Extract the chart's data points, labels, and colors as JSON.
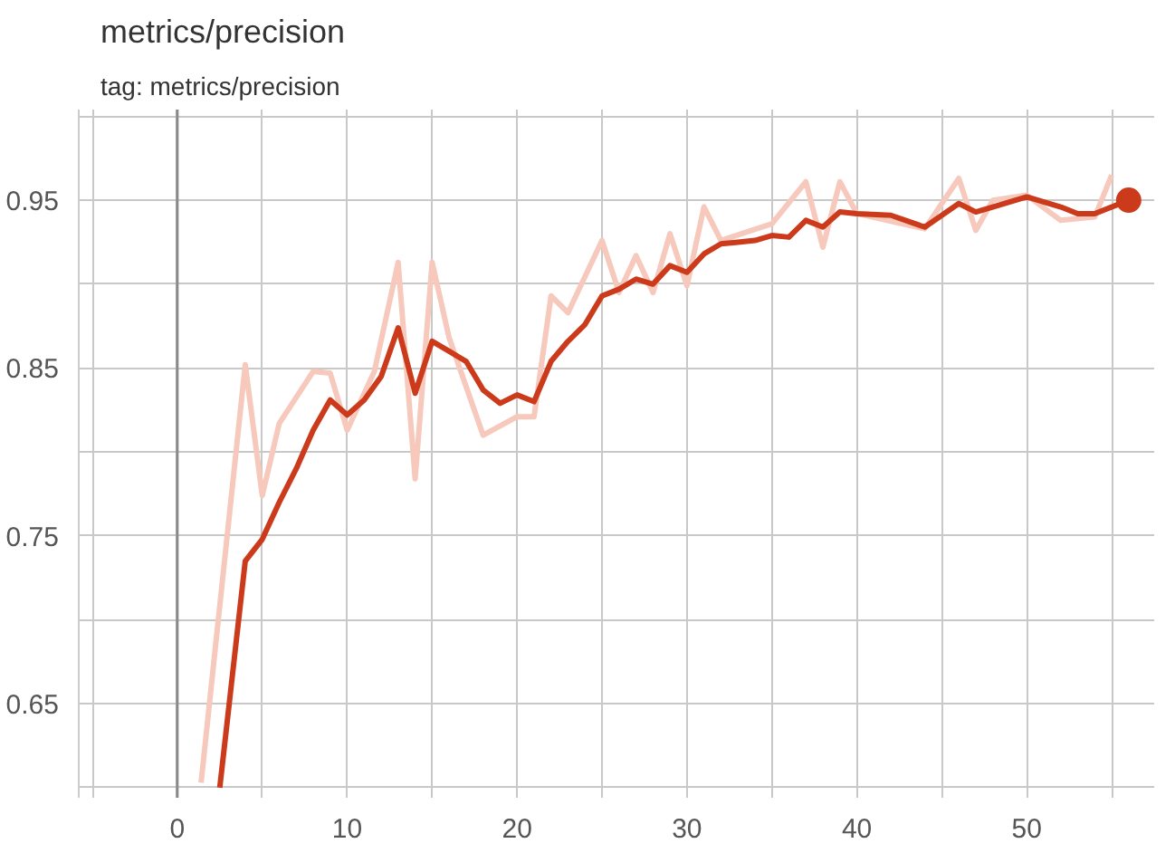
{
  "chart_data": {
    "type": "line",
    "title": "metrics/precision",
    "subtitle": "tag: metrics/precision",
    "xlim": [
      -5.8,
      57.5
    ],
    "ylim": [
      0.594,
      1.004
    ],
    "xticks": [
      {
        "value": -5,
        "label": null
      },
      0,
      {
        "value": 5,
        "label": null
      },
      10,
      {
        "value": 15,
        "label": null
      },
      20,
      {
        "value": 25,
        "label": null
      },
      30,
      {
        "value": 35,
        "label": null
      },
      40,
      {
        "value": 45,
        "label": null
      },
      50,
      {
        "value": 55,
        "label": null
      }
    ],
    "yticks": [
      {
        "value": 0.6,
        "label": null
      },
      0.65,
      {
        "value": 0.7,
        "label": null
      },
      0.75,
      {
        "value": 0.8,
        "label": null
      },
      0.85,
      {
        "value": 0.9,
        "label": null
      },
      0.95,
      {
        "value": 1.0,
        "label": null
      }
    ],
    "grid": true,
    "line_style": "solid",
    "marker": "none",
    "ref_lines": [
      {
        "axis": "x",
        "value": 0,
        "color": "#8a8a8a"
      }
    ],
    "series": [
      {
        "color": "#f7c8bc",
        "x": [
          1.4,
          4,
          5,
          6,
          8,
          9,
          10,
          11.6,
          13,
          14,
          15,
          16,
          18,
          20,
          21,
          22,
          23,
          25,
          26,
          27,
          28,
          29,
          30,
          31,
          32,
          35,
          37,
          38,
          39,
          40,
          44,
          46,
          47,
          48,
          50,
          52,
          54,
          55
        ],
        "values": [
          0.603,
          0.852,
          0.774,
          0.817,
          0.848,
          0.847,
          0.813,
          0.848,
          0.913,
          0.784,
          0.913,
          0.868,
          0.81,
          0.821,
          0.821,
          0.893,
          0.883,
          0.926,
          0.895,
          0.917,
          0.895,
          0.93,
          0.899,
          0.946,
          0.926,
          0.936,
          0.961,
          0.922,
          0.961,
          0.942,
          0.933,
          0.963,
          0.932,
          0.95,
          0.953,
          0.938,
          0.94,
          0.965
        ]
      },
      {
        "color": "#cc3a1c",
        "x": [
          2.5,
          4,
          5,
          6,
          7,
          8,
          9,
          10,
          11,
          12,
          13,
          14,
          15,
          16,
          17,
          18,
          19,
          20,
          21,
          22,
          23,
          24,
          25,
          26,
          27,
          28,
          29,
          30,
          31,
          32,
          33,
          34,
          35,
          36,
          37,
          38,
          39,
          40,
          42,
          44,
          46,
          47,
          48,
          50,
          52,
          53,
          54,
          56
        ],
        "values": [
          0.6,
          0.735,
          0.748,
          0.77,
          0.79,
          0.813,
          0.831,
          0.822,
          0.831,
          0.845,
          0.874,
          0.835,
          0.866,
          0.86,
          0.854,
          0.837,
          0.829,
          0.834,
          0.83,
          0.854,
          0.866,
          0.876,
          0.893,
          0.897,
          0.903,
          0.9,
          0.911,
          0.907,
          0.918,
          0.924,
          0.925,
          0.926,
          0.929,
          0.928,
          0.938,
          0.934,
          0.943,
          0.942,
          0.941,
          0.934,
          0.948,
          0.943,
          0.946,
          0.952,
          0.946,
          0.942,
          0.942,
          0.95
        ]
      },
      {
        "type": "scatter",
        "marker": "circle",
        "color": "#cc3a1c",
        "x": [
          56
        ],
        "values": [
          0.95
        ]
      }
    ]
  }
}
